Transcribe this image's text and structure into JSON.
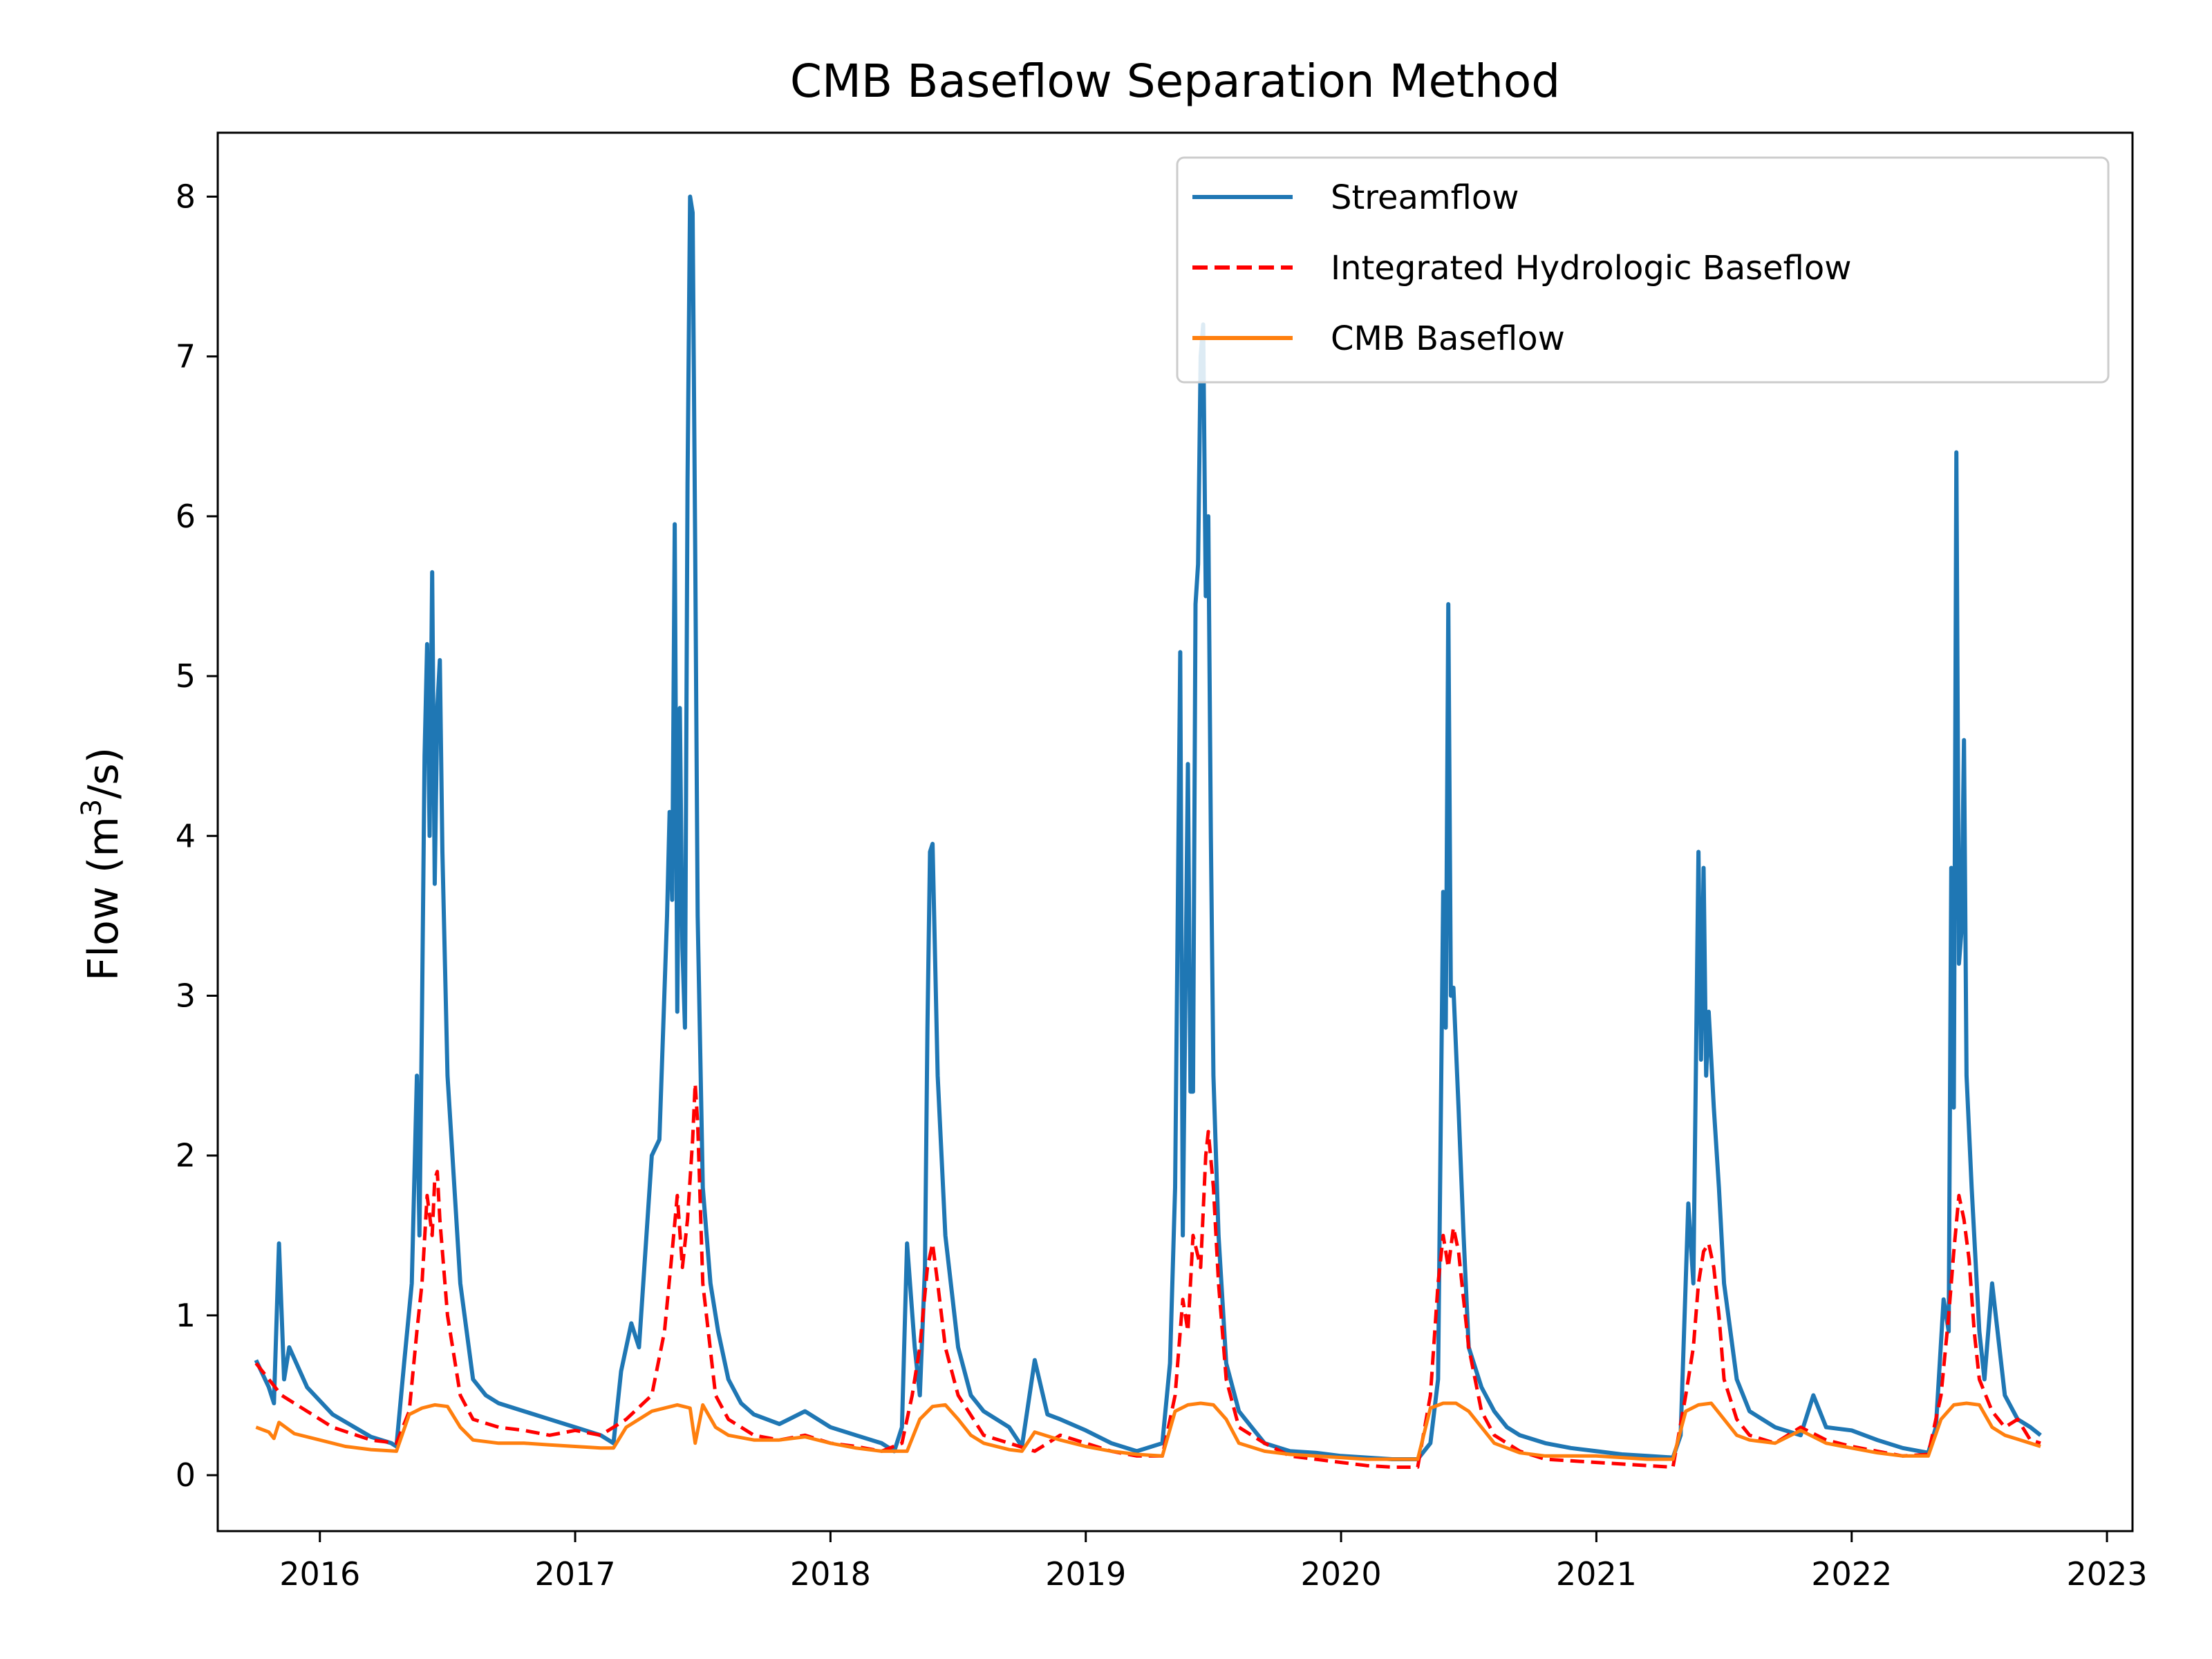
{
  "chart_data": {
    "type": "line",
    "title": "CMB Baseflow Separation Method",
    "xlabel": "",
    "ylabel_prefix": "Flow (m",
    "ylabel_sup": "3",
    "ylabel_suffix": "/s)",
    "xlim": [
      2015.6,
      2023.1
    ],
    "ylim": [
      -0.35,
      8.4
    ],
    "x_ticks": [
      2016,
      2017,
      2018,
      2019,
      2020,
      2021,
      2022,
      2023
    ],
    "x_tick_labels": [
      "2016",
      "2017",
      "2018",
      "2019",
      "2020",
      "2021",
      "2022",
      "2023"
    ],
    "y_ticks": [
      0,
      1,
      2,
      3,
      4,
      5,
      6,
      7,
      8
    ],
    "y_tick_labels": [
      "0",
      "1",
      "2",
      "3",
      "4",
      "5",
      "6",
      "7",
      "8"
    ],
    "legend_position": "top-right",
    "grid": false,
    "series": [
      {
        "name": "Streamflow",
        "color": "#1f77b4",
        "style": "solid",
        "x": [
          2015.75,
          2015.8,
          2015.82,
          2015.84,
          2015.86,
          2015.88,
          2015.95,
          2016.05,
          2016.2,
          2016.28,
          2016.3,
          2016.33,
          2016.36,
          2016.38,
          2016.39,
          2016.4,
          2016.41,
          2016.42,
          2016.43,
          2016.44,
          2016.45,
          2016.46,
          2016.47,
          2016.48,
          2016.5,
          2016.55,
          2016.6,
          2016.65,
          2016.7,
          2016.8,
          2016.9,
          2017.0,
          2017.1,
          2017.15,
          2017.18,
          2017.22,
          2017.25,
          2017.3,
          2017.33,
          2017.36,
          2017.37,
          2017.38,
          2017.39,
          2017.4,
          2017.41,
          2017.42,
          2017.43,
          2017.44,
          2017.45,
          2017.46,
          2017.47,
          2017.48,
          2017.5,
          2017.53,
          2017.56,
          2017.6,
          2017.65,
          2017.7,
          2017.8,
          2017.9,
          2018.0,
          2018.1,
          2018.2,
          2018.25,
          2018.28,
          2018.3,
          2018.33,
          2018.35,
          2018.37,
          2018.38,
          2018.39,
          2018.4,
          2018.42,
          2018.45,
          2018.5,
          2018.55,
          2018.6,
          2018.7,
          2018.75,
          2018.8,
          2018.85,
          2018.9,
          2019.0,
          2019.1,
          2019.2,
          2019.3,
          2019.33,
          2019.35,
          2019.37,
          2019.38,
          2019.4,
          2019.41,
          2019.42,
          2019.43,
          2019.44,
          2019.45,
          2019.46,
          2019.47,
          2019.48,
          2019.49,
          2019.5,
          2019.52,
          2019.55,
          2019.6,
          2019.65,
          2019.7,
          2019.8,
          2019.9,
          2020.0,
          2020.1,
          2020.2,
          2020.3,
          2020.35,
          2020.38,
          2020.4,
          2020.41,
          2020.42,
          2020.43,
          2020.44,
          2020.46,
          2020.48,
          2020.5,
          2020.55,
          2020.6,
          2020.65,
          2020.7,
          2020.8,
          2020.9,
          2021.0,
          2021.1,
          2021.2,
          2021.3,
          2021.33,
          2021.36,
          2021.38,
          2021.4,
          2021.41,
          2021.42,
          2021.43,
          2021.44,
          2021.46,
          2021.48,
          2021.5,
          2021.55,
          2021.6,
          2021.65,
          2021.7,
          2021.8,
          2021.85,
          2021.9,
          2022.0,
          2022.1,
          2022.2,
          2022.3,
          2022.33,
          2022.36,
          2022.38,
          2022.39,
          2022.4,
          2022.41,
          2022.42,
          2022.43,
          2022.44,
          2022.45,
          2022.47,
          2022.5,
          2022.52,
          2022.55,
          2022.6,
          2022.65,
          2022.7,
          2022.74
        ],
        "y": [
          0.72,
          0.55,
          0.45,
          1.45,
          0.6,
          0.8,
          0.55,
          0.38,
          0.24,
          0.2,
          0.18,
          0.7,
          1.2,
          2.5,
          1.5,
          2.9,
          4.5,
          5.2,
          4.0,
          5.65,
          3.7,
          4.8,
          5.1,
          3.9,
          2.5,
          1.2,
          0.6,
          0.5,
          0.45,
          0.4,
          0.35,
          0.3,
          0.25,
          0.2,
          0.65,
          0.95,
          0.8,
          2.0,
          2.1,
          3.5,
          4.15,
          3.6,
          5.95,
          2.9,
          4.8,
          3.3,
          2.8,
          6.2,
          8.0,
          7.9,
          5.8,
          3.5,
          1.8,
          1.2,
          0.9,
          0.6,
          0.45,
          0.38,
          0.32,
          0.4,
          0.3,
          0.25,
          0.2,
          0.15,
          0.3,
          1.45,
          0.8,
          0.5,
          1.3,
          2.8,
          3.9,
          3.95,
          2.5,
          1.5,
          0.8,
          0.5,
          0.4,
          0.3,
          0.18,
          0.72,
          0.38,
          0.35,
          0.28,
          0.2,
          0.15,
          0.2,
          0.7,
          1.8,
          5.15,
          1.5,
          4.45,
          2.4,
          2.4,
          5.45,
          5.7,
          7.0,
          7.2,
          5.5,
          6.0,
          4.0,
          2.5,
          1.5,
          0.7,
          0.4,
          0.3,
          0.2,
          0.15,
          0.14,
          0.12,
          0.11,
          0.1,
          0.1,
          0.2,
          0.6,
          3.65,
          2.8,
          5.45,
          3.0,
          3.05,
          2.3,
          1.5,
          0.8,
          0.55,
          0.4,
          0.3,
          0.25,
          0.2,
          0.17,
          0.15,
          0.13,
          0.12,
          0.11,
          0.25,
          1.7,
          1.2,
          3.9,
          2.6,
          3.8,
          2.5,
          2.9,
          2.3,
          1.8,
          1.2,
          0.6,
          0.4,
          0.35,
          0.3,
          0.25,
          0.5,
          0.3,
          0.28,
          0.22,
          0.17,
          0.14,
          0.3,
          1.1,
          0.9,
          3.8,
          2.3,
          6.4,
          3.2,
          3.4,
          4.6,
          2.5,
          1.8,
          0.9,
          0.6,
          1.2,
          0.5,
          0.35,
          0.3,
          0.25
        ]
      },
      {
        "name": "Integrated Hydrologic Baseflow",
        "color": "#ff0000",
        "style": "dashed",
        "x": [
          2015.75,
          2015.8,
          2015.85,
          2015.95,
          2016.05,
          2016.2,
          2016.3,
          2016.35,
          2016.38,
          2016.4,
          2016.42,
          2016.44,
          2016.45,
          2016.46,
          2016.47,
          2016.5,
          2016.55,
          2016.6,
          2016.7,
          2016.8,
          2016.9,
          2017.0,
          2017.1,
          2017.2,
          2017.3,
          2017.35,
          2017.38,
          2017.4,
          2017.42,
          2017.44,
          2017.46,
          2017.47,
          2017.48,
          2017.5,
          2017.55,
          2017.6,
          2017.7,
          2017.8,
          2017.9,
          2018.0,
          2018.1,
          2018.2,
          2018.28,
          2018.32,
          2018.35,
          2018.38,
          2018.4,
          2018.42,
          2018.45,
          2018.5,
          2018.6,
          2018.7,
          2018.8,
          2018.9,
          2019.0,
          2019.1,
          2019.2,
          2019.3,
          2019.35,
          2019.38,
          2019.4,
          2019.42,
          2019.45,
          2019.47,
          2019.48,
          2019.5,
          2019.52,
          2019.55,
          2019.6,
          2019.7,
          2019.8,
          2019.9,
          2020.0,
          2020.1,
          2020.2,
          2020.3,
          2020.35,
          2020.38,
          2020.4,
          2020.42,
          2020.44,
          2020.46,
          2020.48,
          2020.5,
          2020.55,
          2020.6,
          2020.7,
          2020.8,
          2020.9,
          2021.0,
          2021.1,
          2021.2,
          2021.3,
          2021.35,
          2021.38,
          2021.4,
          2021.42,
          2021.44,
          2021.46,
          2021.48,
          2021.5,
          2021.55,
          2021.6,
          2021.7,
          2021.8,
          2021.9,
          2022.0,
          2022.1,
          2022.2,
          2022.3,
          2022.35,
          2022.38,
          2022.4,
          2022.42,
          2022.44,
          2022.46,
          2022.48,
          2022.5,
          2022.55,
          2022.6,
          2022.65,
          2022.7,
          2022.74
        ],
        "y": [
          0.7,
          0.6,
          0.5,
          0.4,
          0.3,
          0.22,
          0.2,
          0.4,
          0.9,
          1.2,
          1.75,
          1.5,
          1.85,
          1.9,
          1.6,
          1.0,
          0.5,
          0.35,
          0.3,
          0.28,
          0.25,
          0.28,
          0.25,
          0.35,
          0.5,
          0.9,
          1.4,
          1.75,
          1.3,
          1.6,
          2.1,
          2.45,
          2.2,
          1.2,
          0.5,
          0.35,
          0.25,
          0.22,
          0.25,
          0.2,
          0.18,
          0.15,
          0.2,
          0.5,
          0.8,
          1.3,
          1.45,
          1.2,
          0.8,
          0.5,
          0.25,
          0.2,
          0.15,
          0.25,
          0.2,
          0.15,
          0.12,
          0.12,
          0.5,
          1.1,
          0.9,
          1.5,
          1.3,
          2.0,
          2.15,
          1.8,
          1.2,
          0.6,
          0.3,
          0.2,
          0.12,
          0.1,
          0.08,
          0.06,
          0.05,
          0.05,
          0.5,
          1.2,
          1.5,
          1.3,
          1.55,
          1.4,
          1.1,
          0.8,
          0.4,
          0.25,
          0.15,
          0.1,
          0.09,
          0.08,
          0.07,
          0.06,
          0.05,
          0.5,
          0.8,
          1.2,
          1.4,
          1.45,
          1.3,
          1.0,
          0.6,
          0.35,
          0.25,
          0.2,
          0.3,
          0.22,
          0.18,
          0.15,
          0.12,
          0.13,
          0.5,
          1.0,
          1.4,
          1.75,
          1.6,
          1.35,
          0.9,
          0.6,
          0.4,
          0.3,
          0.35,
          0.22,
          0.2
        ]
      },
      {
        "name": "CMB Baseflow",
        "color": "#ff7f0e",
        "style": "solid",
        "x": [
          2015.75,
          2015.8,
          2015.82,
          2015.84,
          2015.9,
          2016.0,
          2016.1,
          2016.2,
          2016.3,
          2016.35,
          2016.4,
          2016.45,
          2016.5,
          2016.55,
          2016.6,
          2016.7,
          2016.8,
          2016.9,
          2017.0,
          2017.1,
          2017.15,
          2017.2,
          2017.3,
          2017.4,
          2017.45,
          2017.47,
          2017.5,
          2017.55,
          2017.6,
          2017.7,
          2017.8,
          2017.9,
          2018.0,
          2018.1,
          2018.2,
          2018.3,
          2018.35,
          2018.4,
          2018.45,
          2018.5,
          2018.55,
          2018.6,
          2018.7,
          2018.75,
          2018.8,
          2018.9,
          2019.0,
          2019.1,
          2019.2,
          2019.3,
          2019.35,
          2019.4,
          2019.45,
          2019.5,
          2019.55,
          2019.6,
          2019.7,
          2019.8,
          2019.9,
          2020.0,
          2020.1,
          2020.2,
          2020.3,
          2020.35,
          2020.4,
          2020.45,
          2020.5,
          2020.55,
          2020.6,
          2020.7,
          2020.8,
          2020.9,
          2021.0,
          2021.1,
          2021.2,
          2021.3,
          2021.35,
          2021.4,
          2021.45,
          2021.5,
          2021.55,
          2021.6,
          2021.7,
          2021.8,
          2021.9,
          2022.0,
          2022.1,
          2022.2,
          2022.3,
          2022.35,
          2022.4,
          2022.45,
          2022.5,
          2022.55,
          2022.6,
          2022.7,
          2022.74
        ],
        "y": [
          0.3,
          0.27,
          0.23,
          0.33,
          0.26,
          0.22,
          0.18,
          0.16,
          0.15,
          0.38,
          0.42,
          0.44,
          0.43,
          0.3,
          0.22,
          0.2,
          0.2,
          0.19,
          0.18,
          0.17,
          0.17,
          0.3,
          0.4,
          0.44,
          0.42,
          0.2,
          0.44,
          0.3,
          0.25,
          0.22,
          0.22,
          0.24,
          0.2,
          0.17,
          0.15,
          0.15,
          0.35,
          0.43,
          0.44,
          0.35,
          0.25,
          0.2,
          0.16,
          0.15,
          0.27,
          0.22,
          0.18,
          0.15,
          0.13,
          0.12,
          0.4,
          0.44,
          0.45,
          0.44,
          0.35,
          0.2,
          0.15,
          0.13,
          0.12,
          0.11,
          0.1,
          0.1,
          0.1,
          0.42,
          0.45,
          0.45,
          0.4,
          0.3,
          0.2,
          0.14,
          0.12,
          0.12,
          0.12,
          0.11,
          0.1,
          0.1,
          0.4,
          0.44,
          0.45,
          0.35,
          0.25,
          0.22,
          0.2,
          0.28,
          0.2,
          0.17,
          0.14,
          0.12,
          0.12,
          0.35,
          0.44,
          0.45,
          0.44,
          0.3,
          0.25,
          0.2,
          0.18
        ]
      }
    ]
  }
}
